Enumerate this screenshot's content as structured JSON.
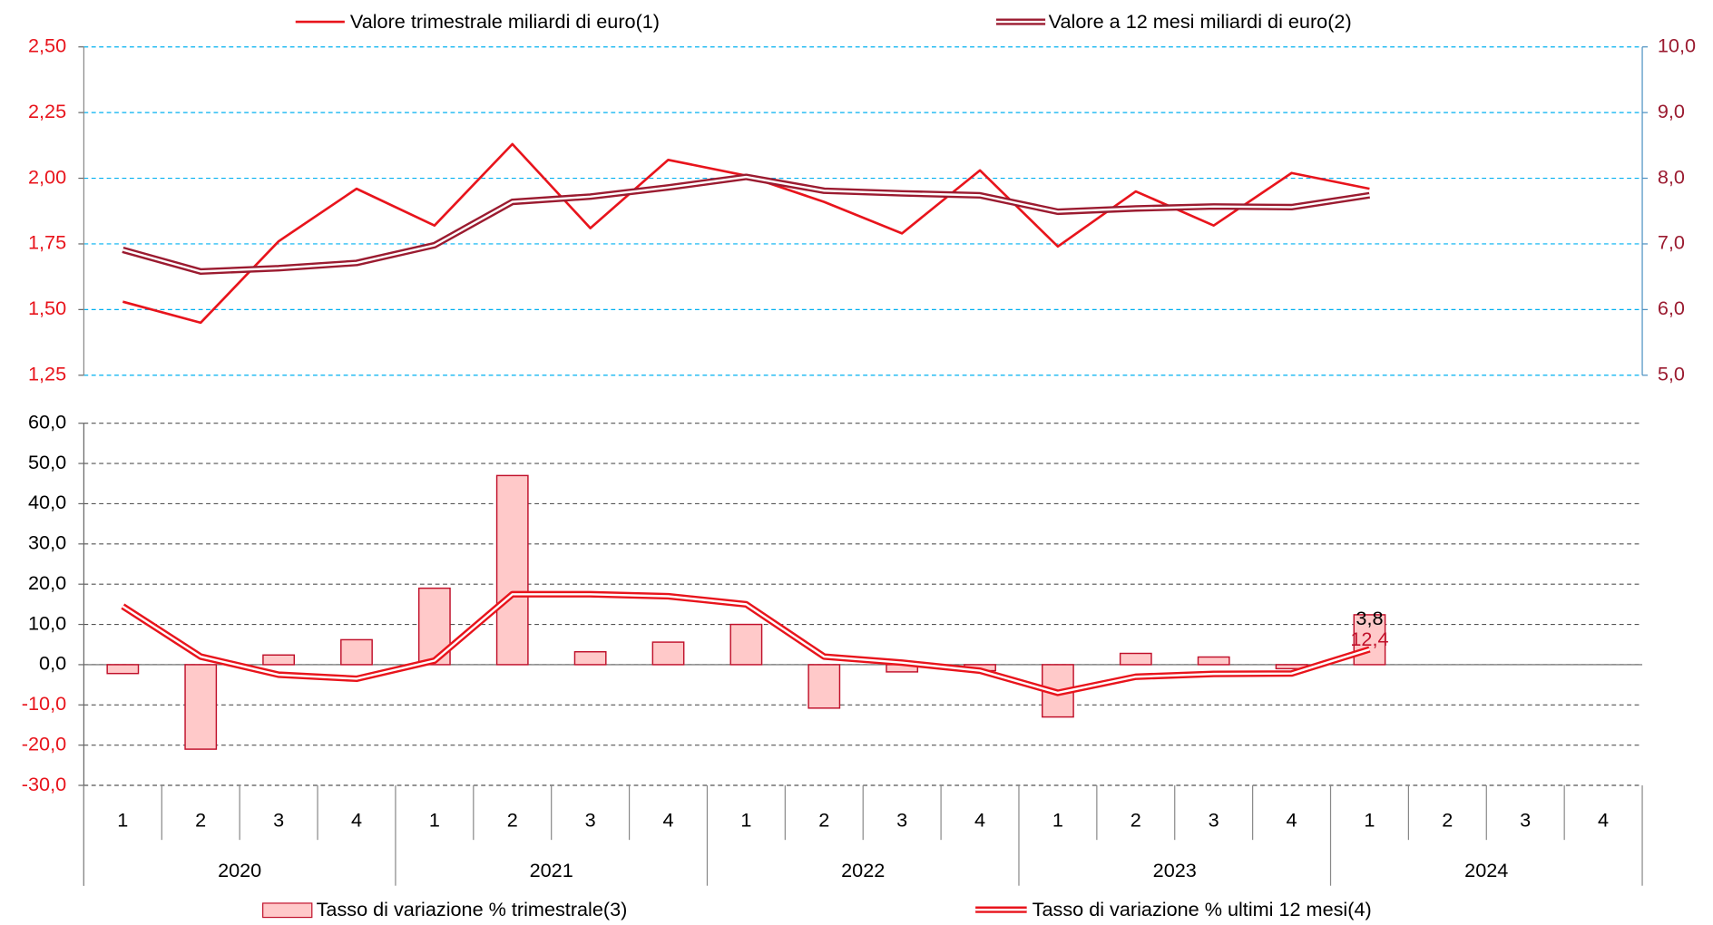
{
  "chart_data": [
    {
      "type": "line",
      "categories": [
        "1",
        "2",
        "3",
        "4",
        "1",
        "2",
        "3",
        "4",
        "1",
        "2",
        "3",
        "4",
        "1",
        "2",
        "3",
        "4",
        "1",
        "2",
        "3",
        "4"
      ],
      "years": [
        "2020",
        "2021",
        "2022",
        "2023",
        "2024"
      ],
      "series": [
        {
          "name": "Valore trimestrale miliardi di euro(1)",
          "color": "#e8141c",
          "values": [
            1.53,
            1.45,
            1.76,
            1.96,
            1.82,
            2.13,
            1.81,
            2.07,
            2.01,
            1.91,
            1.79,
            2.03,
            1.74,
            1.95,
            1.82,
            2.02,
            1.96,
            null,
            null,
            null
          ]
        },
        {
          "name": "Valore a 12 mesi miliardi di euro(2)",
          "color": "#9b1b30",
          "axis": "y2",
          "values": [
            6.91,
            6.58,
            6.63,
            6.71,
            6.98,
            7.64,
            7.72,
            7.86,
            8.02,
            7.81,
            7.77,
            7.74,
            7.49,
            7.54,
            7.57,
            7.56,
            7.74,
            null,
            null,
            null
          ]
        }
      ],
      "ylim": [
        1.25,
        2.5
      ],
      "yticks": [
        {
          "value": 1.25,
          "label": "1,25"
        },
        {
          "value": 1.5,
          "label": "1,50"
        },
        {
          "value": 1.75,
          "label": "1,75"
        },
        {
          "value": 2.0,
          "label": "2,00"
        },
        {
          "value": 2.25,
          "label": "2,25"
        },
        {
          "value": 2.5,
          "label": "2,50"
        }
      ],
      "y2lim": [
        5,
        10
      ],
      "y2ticks": [
        {
          "value": 5,
          "label": "5,0"
        },
        {
          "value": 6,
          "label": "6,0"
        },
        {
          "value": 7,
          "label": "7,0"
        },
        {
          "value": 8,
          "label": "8,0"
        },
        {
          "value": 9,
          "label": "9,0"
        },
        {
          "value": 10,
          "label": "10,0"
        }
      ],
      "grid": true,
      "grid_color": "#00b0f0"
    },
    {
      "type": "bar",
      "series": [
        {
          "name": "Tasso di variazione % trimestrale(3)",
          "type": "bar",
          "color": "#ffc9c9",
          "edge_color": "#c0102a",
          "values": [
            -2.2,
            -21.0,
            2.4,
            6.2,
            19.0,
            47.0,
            3.2,
            5.6,
            10.0,
            -10.8,
            -1.8,
            -1.5,
            -13.0,
            2.8,
            1.9,
            -1.0,
            12.4,
            null,
            null,
            null
          ],
          "value_labels": [
            null,
            null,
            null,
            null,
            null,
            null,
            null,
            null,
            null,
            null,
            null,
            null,
            null,
            null,
            null,
            null,
            "12,4",
            null,
            null,
            null
          ]
        },
        {
          "name": "Tasso di variazione % ultimi 12 mesi(4)",
          "type": "line",
          "color": "#e8141c",
          "values": [
            14.5,
            2.0,
            -2.5,
            -3.5,
            1.0,
            17.5,
            17.5,
            17.0,
            15.0,
            2.0,
            0.5,
            -1.5,
            -7.0,
            -3.0,
            -2.3,
            -2.2,
            3.8,
            null,
            null,
            null
          ],
          "value_labels": [
            null,
            null,
            null,
            null,
            null,
            null,
            null,
            null,
            null,
            null,
            null,
            null,
            null,
            null,
            null,
            null,
            "3,8",
            null,
            null,
            null
          ]
        }
      ],
      "ylim": [
        -30,
        60
      ],
      "yticks": [
        {
          "value": -30,
          "label": "-30,0"
        },
        {
          "value": -20,
          "label": "-20,0"
        },
        {
          "value": -10,
          "label": "-10,0"
        },
        {
          "value": 0,
          "label": "0,0"
        },
        {
          "value": 10,
          "label": "10,0"
        },
        {
          "value": 20,
          "label": "20,0"
        },
        {
          "value": 30,
          "label": "30,0"
        },
        {
          "value": 40,
          "label": "40,0"
        },
        {
          "value": 50,
          "label": "50,0"
        },
        {
          "value": 60,
          "label": "60,0"
        }
      ],
      "grid": true,
      "grid_color": "#555555"
    }
  ]
}
